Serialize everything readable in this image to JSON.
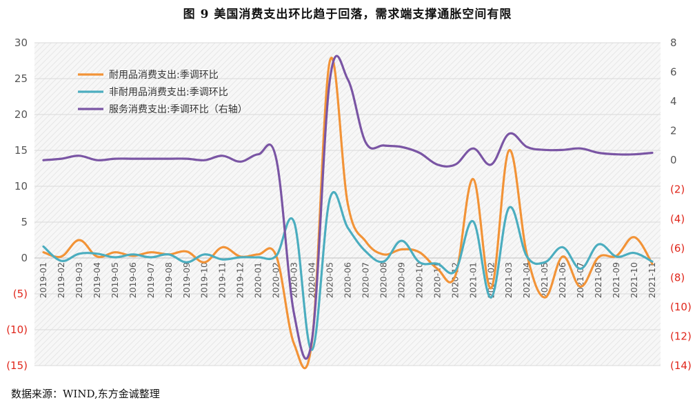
{
  "title": "图 9   美国消费支出环比趋于回落，需求端支撑通胀空间有限",
  "source": "数据来源：WIND,东方金诚整理",
  "colors": {
    "durable": "#f29337",
    "nondurable": "#4badbf",
    "services": "#7a55a4",
    "grid": "#d9d9d9",
    "negative_tick": "#e0261b",
    "plot_bg_hatch": "#ececec"
  },
  "chart_data": {
    "type": "line",
    "title": "图 9   美国消费支出环比趋于回落，需求端支撑通胀空间有限",
    "categories": [
      "2019-01",
      "2019-02",
      "2019-03",
      "2019-04",
      "2019-05",
      "2019-06",
      "2019-07",
      "2019-08",
      "2019-09",
      "2019-10",
      "2019-11",
      "2019-12",
      "2020-01",
      "2020-02",
      "2020-03",
      "2020-04",
      "2020-05",
      "2020-06",
      "2020-07",
      "2020-08",
      "2020-09",
      "2020-10",
      "2020-11",
      "2020-12",
      "2021-01",
      "2021-02",
      "2021-03",
      "2021-04",
      "2021-05",
      "2021-06",
      "2021-07",
      "2021-08",
      "2021-09",
      "2021-10",
      "2021-11"
    ],
    "y_left": {
      "min": -15,
      "max": 30,
      "step": 5,
      "tick_labels": [
        "(15)",
        "(10)",
        "(5)",
        "0",
        "5",
        "10",
        "15",
        "20",
        "25",
        "30"
      ]
    },
    "y_right": {
      "min": -14,
      "max": 8,
      "step": 2,
      "tick_labels": [
        "(14)",
        "(12)",
        "(10)",
        "(8)",
        "(6)",
        "(4)",
        "(2)",
        "0",
        "2",
        "4",
        "6",
        "8"
      ]
    },
    "legend": {
      "placement": "top-left"
    },
    "series": [
      {
        "name": "耐用品消费支出:季调环比",
        "axis": "left",
        "color": "#f29337",
        "values": [
          0.8,
          0.2,
          2.5,
          0.2,
          0.8,
          0.3,
          0.8,
          0.5,
          0.9,
          -0.6,
          1.5,
          0.2,
          0.5,
          0.3,
          -12.0,
          -11.5,
          27.5,
          7.5,
          2.3,
          0.5,
          1.2,
          0.8,
          -1.5,
          -2.5,
          11.0,
          -4.2,
          15.0,
          0.5,
          -5.5,
          0.2,
          -4.0,
          0.1,
          0.3,
          2.9,
          -0.8
        ]
      },
      {
        "name": "非耐用品消费支出:季调环比",
        "axis": "left",
        "color": "#4badbf",
        "values": [
          1.6,
          -0.4,
          0.6,
          0.6,
          0.1,
          0.5,
          0.1,
          0.5,
          -0.6,
          0.5,
          -0.2,
          0.1,
          0.1,
          0.3,
          5.0,
          -12.8,
          8.3,
          4.2,
          0.9,
          -0.5,
          2.4,
          -0.6,
          -0.8,
          -1.8,
          5.1,
          -5.5,
          7.0,
          0.2,
          -0.6,
          1.5,
          -1.5,
          1.9,
          0.2,
          0.7,
          -0.5
        ]
      },
      {
        "name": "服务消费支出:季调环比（右轴）",
        "axis": "right",
        "color": "#7a55a4",
        "values": [
          0.0,
          0.1,
          0.3,
          0.0,
          0.1,
          0.1,
          0.1,
          0.1,
          0.1,
          0.0,
          0.3,
          -0.1,
          0.4,
          0.1,
          -10.5,
          -12.2,
          5.5,
          5.5,
          1.2,
          1.0,
          0.9,
          0.5,
          -0.3,
          -0.3,
          0.8,
          -0.3,
          1.8,
          0.9,
          0.7,
          0.7,
          0.8,
          0.5,
          0.4,
          0.4,
          0.5
        ]
      }
    ],
    "grid": true
  }
}
